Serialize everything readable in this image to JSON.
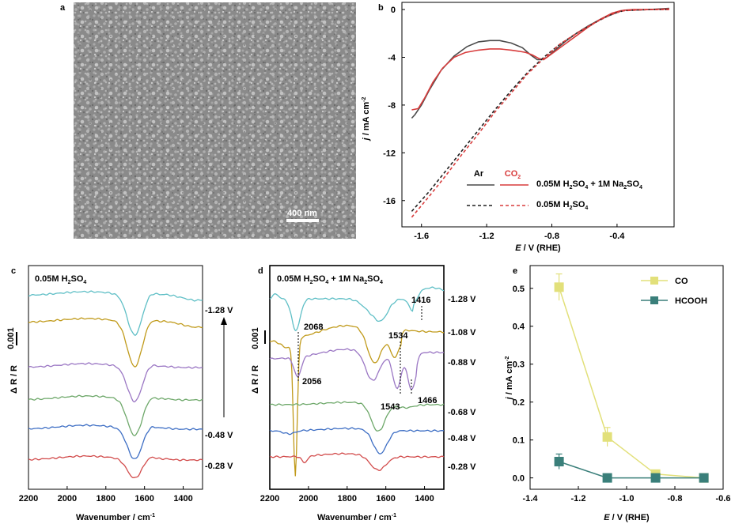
{
  "panel_labels": {
    "a": "a",
    "b": "b",
    "c": "c",
    "d": "d",
    "e": "e"
  },
  "panel_a": {
    "scale_bar_label": "400 nm"
  },
  "chart_data": [
    {
      "id": "b",
      "type": "line",
      "xlabel": "E / V (RHE)",
      "ylabel": "j / mA cm-2",
      "xlim": [
        -1.72,
        -0.05
      ],
      "ylim": [
        -18.2,
        0.6
      ],
      "xticks": [
        "-1.6",
        "-1.2",
        "-0.8",
        "-0.4"
      ],
      "xtick_values": [
        -1.6,
        -1.2,
        -0.8,
        -0.4
      ],
      "yticks": [
        "0",
        "-4",
        "-8",
        "-12",
        "-16"
      ],
      "ytick_values": [
        0,
        -4,
        -8,
        -12,
        -16
      ],
      "legend": {
        "col1": "Ar",
        "col2": "CO2",
        "row1": "0.05M H2SO4 + 1M Na2SO4",
        "row2": "0.05M H2SO4"
      },
      "series": [
        {
          "name": "Ar, 0.05M H2SO4 + 1M Na2SO4",
          "color": "#4a4a4a",
          "dash": false,
          "x": [
            -1.66,
            -1.64,
            -1.6,
            -1.55,
            -1.48,
            -1.4,
            -1.32,
            -1.25,
            -1.18,
            -1.12,
            -1.05,
            -0.98,
            -0.93,
            -0.89,
            -0.86,
            -0.83,
            -0.78,
            -0.72,
            -0.65,
            -0.58,
            -0.5,
            -0.42,
            -0.38,
            -0.35,
            -0.3,
            -0.2,
            -0.08
          ],
          "y": [
            -9.1,
            -8.8,
            -8.0,
            -6.7,
            -5.1,
            -3.9,
            -3.1,
            -2.7,
            -2.6,
            -2.6,
            -2.8,
            -3.2,
            -3.8,
            -4.2,
            -4.2,
            -4.0,
            -3.4,
            -2.7,
            -2.0,
            -1.4,
            -0.8,
            -0.35,
            -0.15,
            -0.05,
            -0.05,
            0.0,
            0.1
          ]
        },
        {
          "name": "CO2, 0.05M H2SO4 + 1M Na2SO4",
          "color": "#d83c3c",
          "dash": false,
          "x": [
            -1.66,
            -1.62,
            -1.58,
            -1.53,
            -1.47,
            -1.4,
            -1.33,
            -1.25,
            -1.18,
            -1.12,
            -1.05,
            -1.0,
            -0.96,
            -0.92,
            -0.88,
            -0.85,
            -0.8,
            -0.72,
            -0.65,
            -0.58,
            -0.5,
            -0.43,
            -0.38,
            -0.35,
            -0.3,
            -0.2,
            -0.08
          ],
          "y": [
            -8.4,
            -8.3,
            -7.4,
            -6.1,
            -4.9,
            -4.0,
            -3.6,
            -3.4,
            -3.3,
            -3.3,
            -3.4,
            -3.5,
            -3.6,
            -3.8,
            -4.1,
            -4.2,
            -3.7,
            -2.9,
            -2.2,
            -1.5,
            -0.8,
            -0.3,
            -0.1,
            -0.05,
            0.0,
            0.0,
            0.05
          ]
        },
        {
          "name": "Ar, 0.05M H2SO4",
          "color": "#1f1f1f",
          "dash": true,
          "x": [
            -1.66,
            -1.55,
            -1.45,
            -1.35,
            -1.25,
            -1.15,
            -1.05,
            -0.95,
            -0.85,
            -0.75,
            -0.65,
            -0.55,
            -0.45,
            -0.4,
            -0.36,
            -0.3,
            -0.2,
            -0.08
          ],
          "y": [
            -16.9,
            -15.2,
            -13.5,
            -11.8,
            -10.1,
            -8.4,
            -6.8,
            -5.3,
            -4.0,
            -2.9,
            -2.0,
            -1.2,
            -0.5,
            -0.25,
            -0.1,
            -0.05,
            0.0,
            0.0
          ]
        },
        {
          "name": "CO2, 0.05M H2SO4",
          "color": "#d83c3c",
          "dash": true,
          "x": [
            -1.66,
            -1.55,
            -1.45,
            -1.35,
            -1.25,
            -1.15,
            -1.05,
            -0.95,
            -0.85,
            -0.75,
            -0.65,
            -0.55,
            -0.45,
            -0.4,
            -0.36,
            -0.3,
            -0.2,
            -0.08
          ],
          "y": [
            -17.4,
            -15.6,
            -13.9,
            -12.1,
            -10.4,
            -8.6,
            -7.0,
            -5.4,
            -4.1,
            -2.9,
            -2.0,
            -1.2,
            -0.5,
            -0.25,
            -0.1,
            -0.05,
            0.0,
            0.0
          ]
        }
      ]
    },
    {
      "id": "c",
      "type": "line",
      "title": "0.05M H2SO4",
      "xlabel": "Wavenumber / cm-1",
      "ylabel": "Δ R / R",
      "xlim": [
        2200,
        1300
      ],
      "xticks": [
        "2200",
        "2000",
        "1800",
        "1600",
        "1400"
      ],
      "xtick_values": [
        2200,
        2000,
        1800,
        1600,
        1400
      ],
      "scale_bar_label": "0.001",
      "baselines_top_to_bottom": [
        374,
        408,
        465,
        506,
        543,
        582
      ],
      "labels_top_to_bottom": [
        "-1.28 V",
        "",
        "",
        "",
        "-0.48 V",
        "-0.28 V"
      ],
      "colors_top_to_bottom": [
        "#5fbfc6",
        "#c09a1a",
        "#9b77c4",
        "#6ea86a",
        "#3d6ec4",
        "#d24b4b"
      ],
      "band_center_cm": 1650,
      "band_depths_top_to_bottom": [
        52,
        58,
        45,
        47,
        40,
        25
      ]
    },
    {
      "id": "d",
      "type": "line",
      "title": "0.05M H2SO4 + 1M Na2SO4",
      "xlabel": "Wavenumber / cm-1",
      "ylabel": "Δ R / R",
      "xlim": [
        2200,
        1300
      ],
      "xticks": [
        "2200",
        "2000",
        "1800",
        "1600",
        "1400"
      ],
      "xtick_values": [
        2200,
        2000,
        1800,
        1600,
        1400
      ],
      "scale_bar_label": "0.001",
      "labels_top_to_bottom": [
        "-1.28 V",
        "-1.08 V",
        "-0.88 V",
        "-0.68 V",
        "-0.48 V",
        "-0.28 V"
      ],
      "colors_top_to_bottom": [
        "#5fbfc6",
        "#c09a1a",
        "#9b77c4",
        "#6ea86a",
        "#3d6ec4",
        "#d24b4b"
      ],
      "annotations": [
        "2068",
        "2056",
        "1534",
        "1543",
        "1466",
        "1416"
      ]
    },
    {
      "id": "e",
      "type": "line",
      "xlabel": "E / V (RHE)",
      "ylabel": "j / mA cm-2",
      "xlim": [
        -1.4,
        -0.6
      ],
      "ylim": [
        -0.03,
        0.56
      ],
      "xticks": [
        "-1.4",
        "-1.2",
        "-1.0",
        "-0.8",
        "-0.6"
      ],
      "xtick_values": [
        -1.4,
        -1.2,
        -1.0,
        -0.8,
        -0.6
      ],
      "yticks": [
        "0.0",
        "0.1",
        "0.2",
        "0.3",
        "0.4",
        "0.5"
      ],
      "ytick_values": [
        0,
        0.1,
        0.2,
        0.3,
        0.4,
        0.5
      ],
      "series": [
        {
          "name": "CO",
          "color": "#e2e07a",
          "x": [
            -1.28,
            -1.08,
            -0.88,
            -0.68
          ],
          "y": [
            0.503,
            0.108,
            0.01,
            0.0
          ],
          "err": [
            0.035,
            0.025,
            0.008,
            0.002
          ]
        },
        {
          "name": "HCOOH",
          "color": "#3a7f7a",
          "x": [
            -1.28,
            -1.08,
            -0.88,
            -0.68
          ],
          "y": [
            0.043,
            0.0,
            0.0,
            0.0
          ],
          "err": [
            0.02,
            0.01,
            0.005,
            0.002
          ]
        }
      ]
    }
  ]
}
